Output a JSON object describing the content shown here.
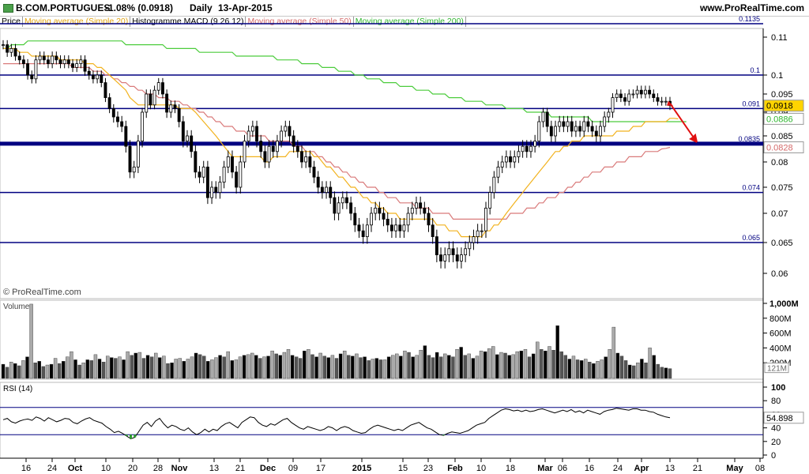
{
  "header": {
    "symbol": "B.COM.PORTUGUES",
    "change": "-1.08% (0.0918)",
    "period": "Daily",
    "date": "13-Apr-2015",
    "site": "www.ProRealTime.com"
  },
  "legend": {
    "price": "Price",
    "ma20": "Moving average (Simple 20)",
    "macd": "Histogramme MACD (9 26 12)",
    "ma50": "Moving average (Simple 50)",
    "ma200": "Moving average (Simple 200)"
  },
  "watermark": "© ProRealTime.com",
  "colors": {
    "ma20": "#f2b21d",
    "ma50": "#d97a7a",
    "ma200": "#4ccc3c",
    "hline": "#000080",
    "arrow": "#e01010",
    "candle_up": "#ffffff",
    "candle_down": "#000000"
  },
  "chart_data": [
    {
      "type": "candlestick",
      "title": "B.COM.PORTUGUES Daily",
      "ylim": [
        0.057,
        0.114
      ],
      "y_ticks": [
        "0.11",
        "0.1",
        "0.095",
        "0.09",
        "0.085",
        "0.08",
        "0.075",
        "0.07",
        "0.065",
        "0.06"
      ],
      "x_ticks": [
        "16",
        "24",
        "Oct",
        "10",
        "20",
        "28",
        "Nov",
        "13",
        "21",
        "Dec",
        "09",
        "17",
        "2015",
        "15",
        "23",
        "Feb",
        "10",
        "18",
        "Mar",
        "06",
        "16",
        "24",
        "Apr",
        "13",
        "21",
        "May",
        "08"
      ],
      "last_price_label": "0.0918",
      "ma20_label": "0.0886",
      "ma50_label": "0.0828",
      "horizontal_levels": [
        {
          "value": 0.1135,
          "label": "0.1135"
        },
        {
          "value": 0.1,
          "label": "0.1"
        },
        {
          "value": 0.091,
          "label": "0.091"
        },
        {
          "value": 0.0835,
          "label": "0.0835"
        },
        {
          "value": 0.074,
          "label": "0.074"
        },
        {
          "value": 0.065,
          "label": "0.065"
        }
      ],
      "close": [
        0.108,
        0.106,
        0.107,
        0.105,
        0.104,
        0.103,
        0.1,
        0.099,
        0.104,
        0.105,
        0.104,
        0.103,
        0.105,
        0.104,
        0.103,
        0.104,
        0.103,
        0.102,
        0.103,
        0.104,
        0.101,
        0.1,
        0.099,
        0.1,
        0.098,
        0.094,
        0.091,
        0.089,
        0.088,
        0.087,
        0.083,
        0.078,
        0.079,
        0.084,
        0.09,
        0.095,
        0.092,
        0.096,
        0.098,
        0.095,
        0.09,
        0.092,
        0.091,
        0.088,
        0.084,
        0.085,
        0.082,
        0.078,
        0.077,
        0.079,
        0.073,
        0.075,
        0.074,
        0.076,
        0.079,
        0.081,
        0.078,
        0.075,
        0.08,
        0.084,
        0.086,
        0.087,
        0.084,
        0.082,
        0.08,
        0.083,
        0.082,
        0.084,
        0.086,
        0.087,
        0.085,
        0.083,
        0.082,
        0.08,
        0.081,
        0.079,
        0.077,
        0.075,
        0.074,
        0.075,
        0.073,
        0.07,
        0.072,
        0.073,
        0.072,
        0.07,
        0.068,
        0.067,
        0.066,
        0.068,
        0.07,
        0.071,
        0.07,
        0.069,
        0.068,
        0.067,
        0.068,
        0.067,
        0.068,
        0.07,
        0.071,
        0.072,
        0.071,
        0.07,
        0.068,
        0.066,
        0.063,
        0.062,
        0.063,
        0.064,
        0.063,
        0.062,
        0.063,
        0.064,
        0.065,
        0.066,
        0.067,
        0.067,
        0.071,
        0.074,
        0.077,
        0.079,
        0.08,
        0.081,
        0.08,
        0.081,
        0.082,
        0.083,
        0.082,
        0.083,
        0.084,
        0.088,
        0.09,
        0.087,
        0.085,
        0.087,
        0.088,
        0.087,
        0.088,
        0.086,
        0.087,
        0.086,
        0.088,
        0.087,
        0.086,
        0.085,
        0.087,
        0.089,
        0.09,
        0.094,
        0.095,
        0.094,
        0.093,
        0.095,
        0.095,
        0.096,
        0.095,
        0.096,
        0.095,
        0.094,
        0.093,
        0.093,
        0.093,
        0.0918
      ],
      "ma20": [
        0.107,
        0.107,
        0.107,
        0.107,
        0.106,
        0.106,
        0.106,
        0.105,
        0.105,
        0.105,
        0.105,
        0.105,
        0.105,
        0.105,
        0.104,
        0.104,
        0.104,
        0.104,
        0.104,
        0.104,
        0.103,
        0.103,
        0.103,
        0.102,
        0.102,
        0.101,
        0.1,
        0.099,
        0.098,
        0.097,
        0.096,
        0.094,
        0.093,
        0.092,
        0.092,
        0.092,
        0.092,
        0.092,
        0.092,
        0.092,
        0.092,
        0.092,
        0.092,
        0.091,
        0.091,
        0.091,
        0.091,
        0.09,
        0.089,
        0.088,
        0.087,
        0.086,
        0.085,
        0.084,
        0.083,
        0.082,
        0.081,
        0.081,
        0.081,
        0.081,
        0.081,
        0.081,
        0.081,
        0.081,
        0.08,
        0.08,
        0.081,
        0.081,
        0.081,
        0.081,
        0.082,
        0.082,
        0.082,
        0.082,
        0.082,
        0.082,
        0.081,
        0.081,
        0.08,
        0.079,
        0.079,
        0.078,
        0.077,
        0.077,
        0.076,
        0.075,
        0.075,
        0.074,
        0.073,
        0.073,
        0.072,
        0.072,
        0.071,
        0.071,
        0.07,
        0.07,
        0.07,
        0.069,
        0.069,
        0.069,
        0.069,
        0.069,
        0.069,
        0.069,
        0.069,
        0.069,
        0.068,
        0.068,
        0.068,
        0.067,
        0.067,
        0.067,
        0.066,
        0.066,
        0.066,
        0.066,
        0.066,
        0.066,
        0.067,
        0.067,
        0.068,
        0.068,
        0.069,
        0.07,
        0.071,
        0.072,
        0.073,
        0.074,
        0.075,
        0.076,
        0.077,
        0.078,
        0.079,
        0.08,
        0.081,
        0.082,
        0.082,
        0.083,
        0.083,
        0.084,
        0.084,
        0.084,
        0.085,
        0.085,
        0.085,
        0.085,
        0.085,
        0.085,
        0.085,
        0.085,
        0.086,
        0.086,
        0.086,
        0.086,
        0.087,
        0.087,
        0.087,
        0.088,
        0.088,
        0.088,
        0.088,
        0.088,
        0.088,
        0.0887,
        0.0887,
        0.0886
      ],
      "ma50": [
        0.103,
        0.103,
        0.103,
        0.103,
        0.103,
        0.103,
        0.103,
        0.103,
        0.103,
        0.103,
        0.103,
        0.103,
        0.103,
        0.103,
        0.103,
        0.103,
        0.103,
        0.102,
        0.102,
        0.102,
        0.102,
        0.102,
        0.101,
        0.101,
        0.101,
        0.1,
        0.1,
        0.099,
        0.099,
        0.098,
        0.098,
        0.097,
        0.097,
        0.096,
        0.096,
        0.095,
        0.095,
        0.095,
        0.094,
        0.094,
        0.094,
        0.093,
        0.093,
        0.093,
        0.092,
        0.092,
        0.091,
        0.091,
        0.09,
        0.09,
        0.089,
        0.089,
        0.088,
        0.088,
        0.087,
        0.087,
        0.087,
        0.086,
        0.086,
        0.086,
        0.085,
        0.085,
        0.085,
        0.085,
        0.085,
        0.084,
        0.084,
        0.084,
        0.084,
        0.084,
        0.084,
        0.083,
        0.083,
        0.083,
        0.082,
        0.082,
        0.082,
        0.081,
        0.081,
        0.08,
        0.08,
        0.079,
        0.079,
        0.078,
        0.078,
        0.077,
        0.077,
        0.076,
        0.076,
        0.075,
        0.075,
        0.075,
        0.074,
        0.074,
        0.073,
        0.073,
        0.073,
        0.072,
        0.072,
        0.072,
        0.072,
        0.071,
        0.071,
        0.071,
        0.071,
        0.07,
        0.07,
        0.07,
        0.07,
        0.07,
        0.069,
        0.069,
        0.069,
        0.069,
        0.069,
        0.069,
        0.069,
        0.069,
        0.069,
        0.069,
        0.069,
        0.069,
        0.069,
        0.069,
        0.07,
        0.07,
        0.07,
        0.07,
        0.071,
        0.071,
        0.071,
        0.072,
        0.072,
        0.073,
        0.073,
        0.073,
        0.074,
        0.074,
        0.075,
        0.075,
        0.076,
        0.076,
        0.077,
        0.077,
        0.078,
        0.078,
        0.078,
        0.079,
        0.079,
        0.079,
        0.08,
        0.08,
        0.08,
        0.081,
        0.081,
        0.081,
        0.081,
        0.082,
        0.082,
        0.082,
        0.082,
        0.0825,
        0.0826,
        0.0828
      ],
      "ma200": [
        0.107,
        0.107,
        0.108,
        0.108,
        0.108,
        0.108,
        0.109,
        0.109,
        0.109,
        0.109,
        0.109,
        0.109,
        0.109,
        0.109,
        0.109,
        0.109,
        0.109,
        0.109,
        0.109,
        0.109,
        0.109,
        0.109,
        0.109,
        0.109,
        0.109,
        0.109,
        0.109,
        0.109,
        0.109,
        0.109,
        0.108,
        0.108,
        0.108,
        0.108,
        0.108,
        0.108,
        0.108,
        0.108,
        0.108,
        0.108,
        0.107,
        0.107,
        0.107,
        0.107,
        0.107,
        0.107,
        0.107,
        0.107,
        0.106,
        0.106,
        0.106,
        0.106,
        0.106,
        0.106,
        0.106,
        0.106,
        0.106,
        0.105,
        0.105,
        0.105,
        0.105,
        0.105,
        0.105,
        0.105,
        0.105,
        0.105,
        0.105,
        0.104,
        0.104,
        0.104,
        0.104,
        0.104,
        0.104,
        0.103,
        0.103,
        0.103,
        0.103,
        0.103,
        0.102,
        0.102,
        0.102,
        0.102,
        0.101,
        0.101,
        0.101,
        0.101,
        0.1,
        0.1,
        0.1,
        0.099,
        0.099,
        0.099,
        0.099,
        0.098,
        0.098,
        0.098,
        0.098,
        0.097,
        0.097,
        0.097,
        0.097,
        0.096,
        0.096,
        0.096,
        0.096,
        0.095,
        0.095,
        0.095,
        0.095,
        0.094,
        0.094,
        0.094,
        0.094,
        0.093,
        0.093,
        0.093,
        0.093,
        0.093,
        0.092,
        0.092,
        0.092,
        0.092,
        0.092,
        0.091,
        0.091,
        0.091,
        0.091,
        0.091,
        0.09,
        0.09,
        0.09,
        0.09,
        0.09,
        0.09,
        0.089,
        0.089,
        0.089,
        0.089,
        0.089,
        0.089,
        0.089,
        0.089,
        0.089,
        0.089,
        0.088,
        0.088,
        0.088,
        0.088,
        0.088,
        0.088,
        0.088,
        0.088,
        0.088,
        0.088,
        0.088,
        0.088,
        0.088,
        0.088,
        0.088,
        0.088,
        0.088,
        0.088,
        0.088,
        0.088,
        0.088,
        0.088,
        0.088,
        0.088
      ]
    },
    {
      "type": "bar",
      "title": "Volume",
      "y_ticks": [
        "1,000M",
        "800M",
        "600M",
        "400M",
        "200M"
      ],
      "last_label": "121M",
      "ylim": [
        0,
        1000
      ],
      "values": [
        180,
        140,
        210,
        190,
        160,
        230,
        280,
        990,
        200,
        220,
        150,
        170,
        180,
        260,
        190,
        220,
        280,
        350,
        240,
        170,
        200,
        240,
        230,
        310,
        250,
        210,
        290,
        270,
        260,
        280,
        240,
        350,
        300,
        330,
        340,
        260,
        300,
        280,
        330,
        270,
        290,
        190,
        200,
        250,
        260,
        220,
        250,
        280,
        330,
        310,
        290,
        220,
        240,
        270,
        300,
        280,
        350,
        230,
        240,
        280,
        300,
        310,
        330,
        300,
        260,
        280,
        290,
        360,
        320,
        300,
        340,
        380,
        300,
        280,
        260,
        360,
        380,
        310,
        280,
        330,
        290,
        270,
        300,
        260,
        320,
        360,
        300,
        290,
        320,
        270,
        280,
        230,
        250,
        260,
        240,
        240,
        280,
        300,
        320,
        290,
        360,
        340,
        280,
        300,
        370,
        430,
        300,
        270,
        340,
        280,
        320,
        300,
        280,
        380,
        410,
        300,
        320,
        260,
        290,
        360,
        350,
        390,
        420,
        310,
        340,
        330,
        300,
        310,
        350,
        360,
        380,
        280,
        320,
        480,
        380,
        360,
        420,
        370,
        700,
        350,
        300,
        250,
        290,
        240,
        230,
        250,
        210,
        190,
        220,
        240,
        280,
        380,
        680,
        330,
        290,
        230,
        170,
        160,
        200,
        250,
        200,
        400,
        300,
        180,
        140,
        130,
        121
      ]
    },
    {
      "type": "line",
      "title": "RSI (14)",
      "ylim": [
        0,
        100
      ],
      "y_ticks": [
        "100",
        "80",
        "60",
        "40",
        "20",
        "0"
      ],
      "last_label": "54.898",
      "values": [
        52,
        54,
        49,
        47,
        50,
        52,
        53,
        51,
        56,
        54,
        50,
        55,
        52,
        49,
        51,
        54,
        53,
        48,
        46,
        50,
        53,
        55,
        51,
        49,
        47,
        42,
        38,
        33,
        35,
        32,
        28,
        24,
        26,
        35,
        44,
        48,
        42,
        50,
        54,
        46,
        40,
        44,
        42,
        38,
        36,
        40,
        34,
        30,
        33,
        38,
        34,
        38,
        36,
        42,
        46,
        48,
        44,
        40,
        48,
        52,
        56,
        55,
        48,
        44,
        42,
        46,
        44,
        48,
        52,
        54,
        48,
        44,
        40,
        38,
        42,
        40,
        38,
        36,
        38,
        42,
        40,
        36,
        40,
        42,
        40,
        36,
        34,
        32,
        33,
        38,
        42,
        44,
        42,
        40,
        38,
        36,
        38,
        36,
        40,
        44,
        46,
        48,
        44,
        40,
        38,
        34,
        30,
        29,
        32,
        34,
        33,
        32,
        34,
        36,
        40,
        44,
        46,
        48,
        54,
        58,
        62,
        66,
        68,
        67,
        65,
        66,
        64,
        66,
        64,
        65,
        67,
        68,
        66,
        64,
        62,
        64,
        66,
        64,
        67,
        63,
        65,
        62,
        66,
        64,
        62,
        60,
        64,
        66,
        67,
        69,
        68,
        67,
        66,
        68,
        68,
        66,
        66,
        64,
        63,
        60,
        58,
        56,
        54.898
      ]
    }
  ]
}
